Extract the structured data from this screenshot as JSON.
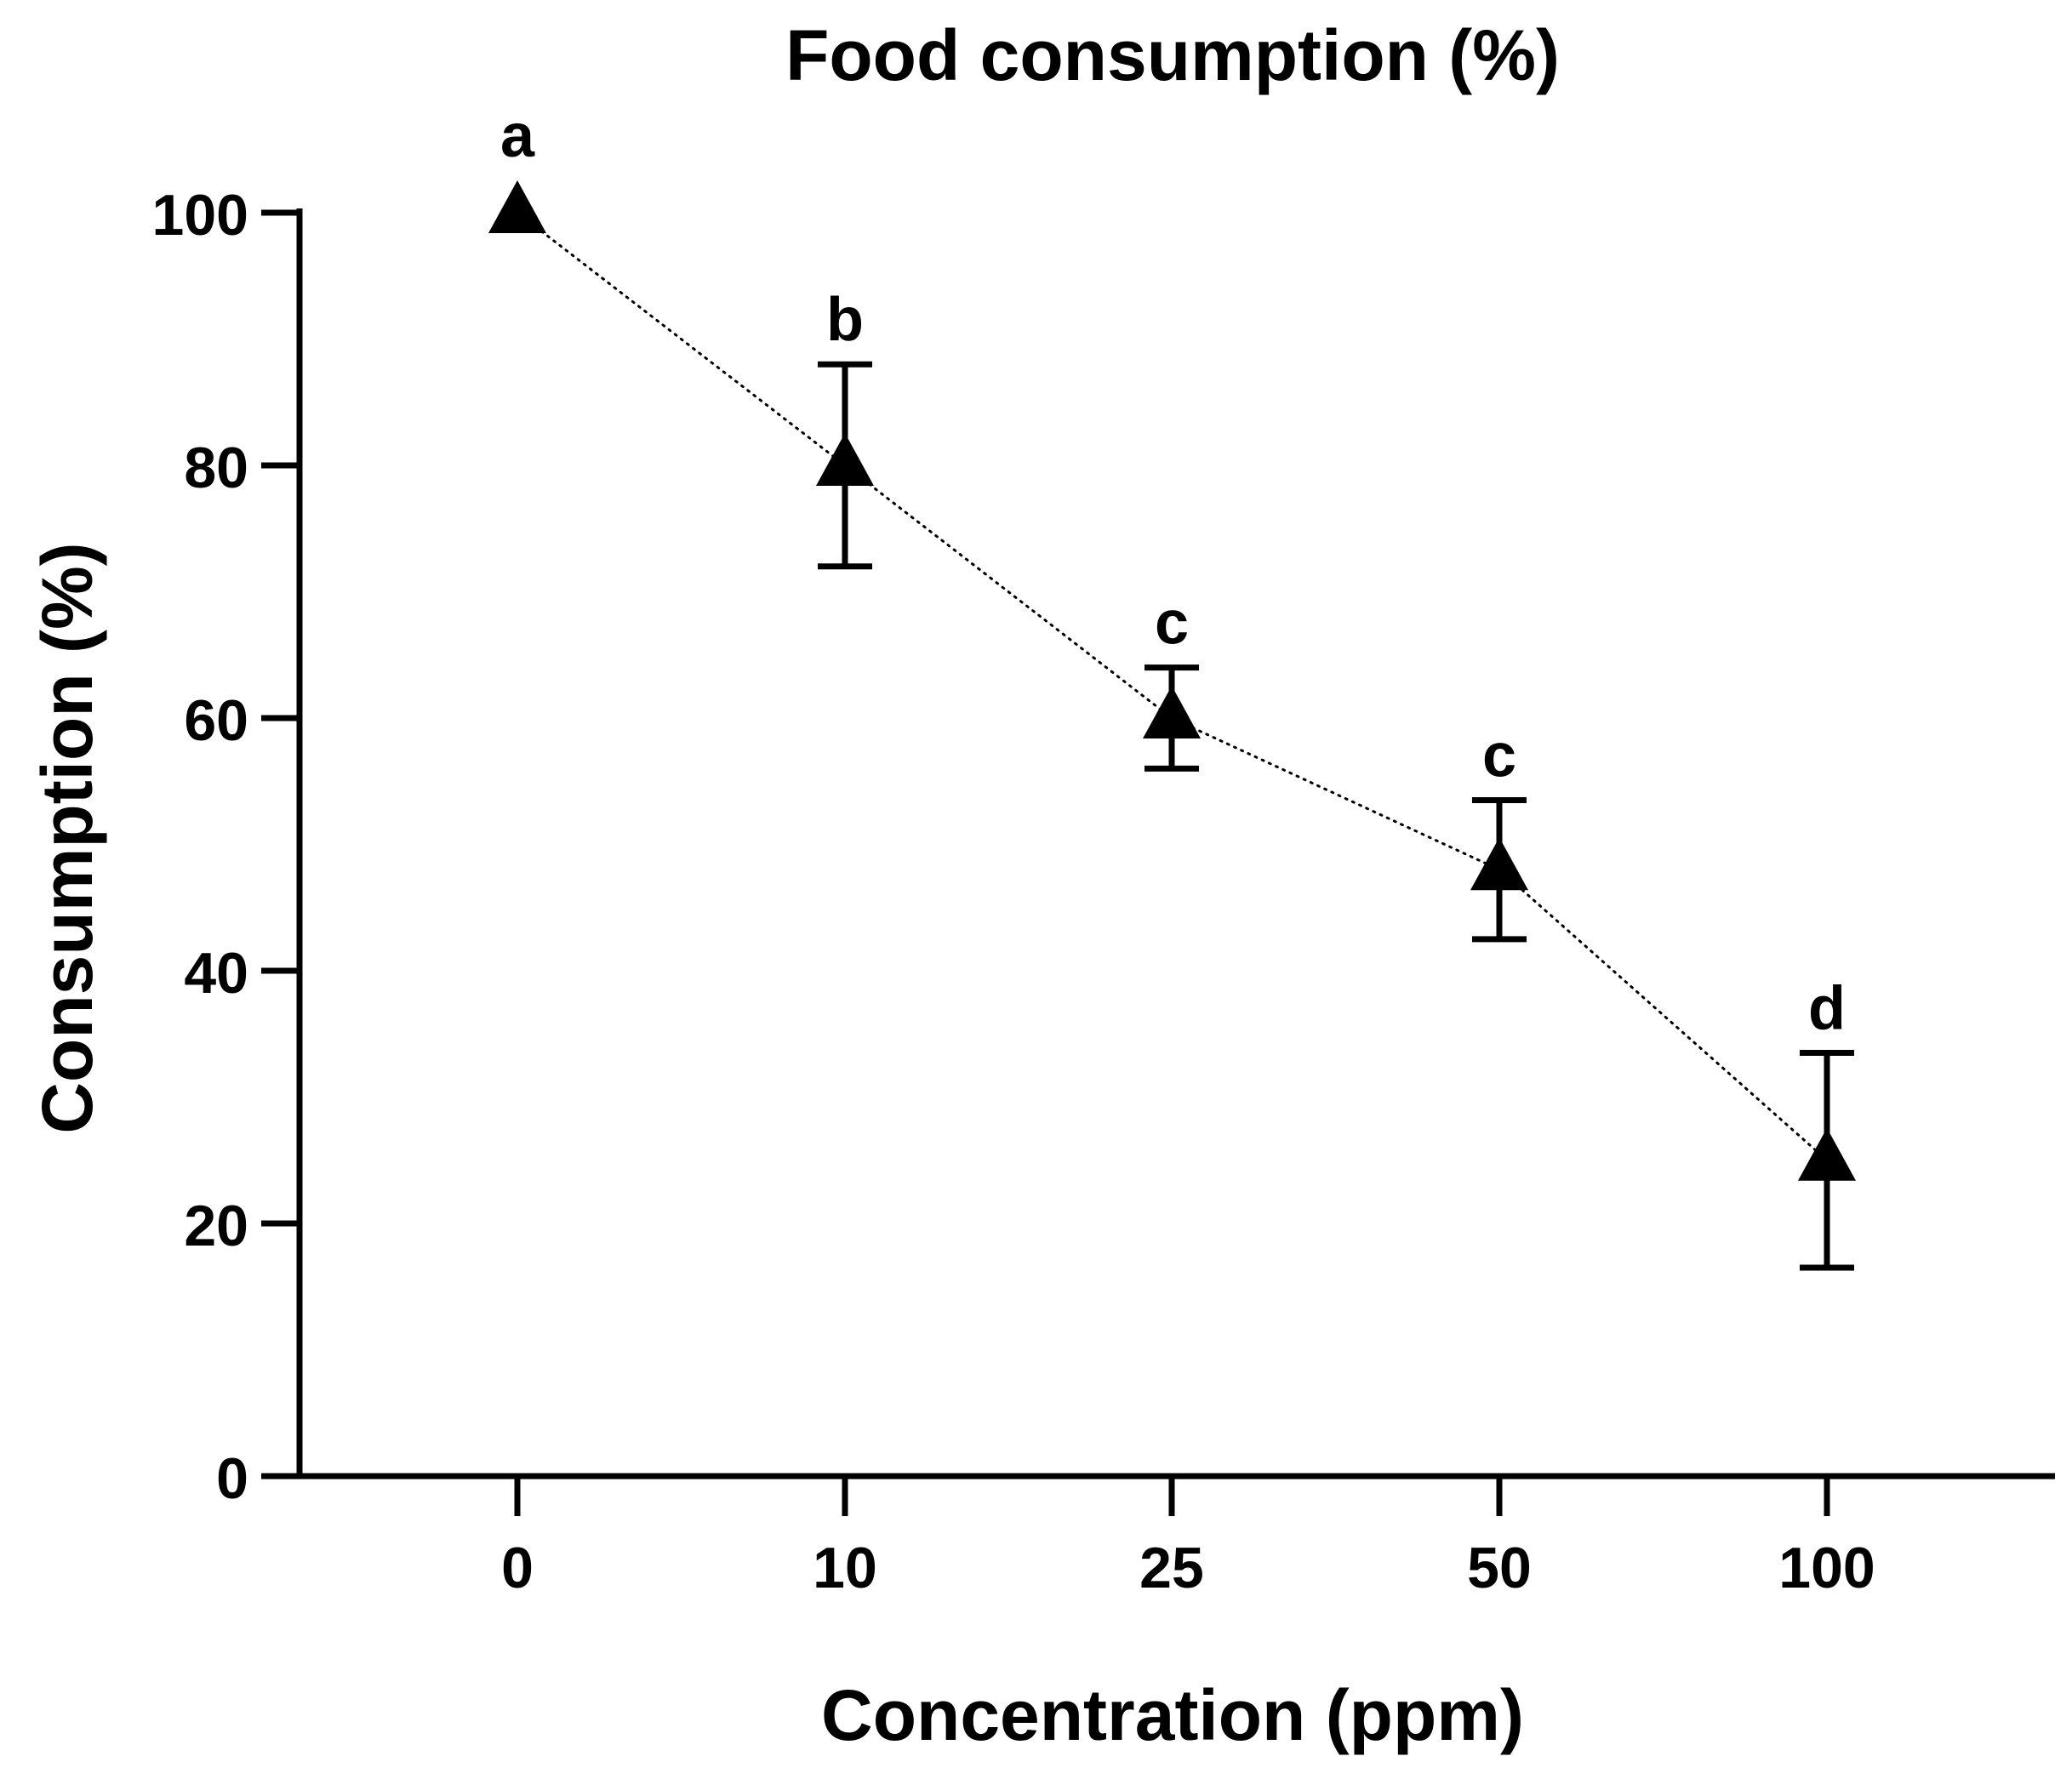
{
  "chart_data": {
    "type": "scatter",
    "title": "Food consumption (%)",
    "xlabel": "Concentration (ppm)",
    "ylabel": "Consumption (%)",
    "categories": [
      "0",
      "10",
      "25",
      "50",
      "100"
    ],
    "values": [
      100,
      80,
      60,
      48,
      25
    ],
    "error_low": [
      100,
      72,
      56,
      42.5,
      16.5
    ],
    "error_high": [
      100,
      88,
      64,
      53.5,
      33.5
    ],
    "significance_labels": [
      "a",
      "b",
      "c",
      "c",
      "d"
    ],
    "connector": "dotted-line",
    "marker": "triangle",
    "ylim": [
      0,
      100
    ],
    "yticks": [
      0,
      20,
      40,
      60,
      80,
      100
    ],
    "grid": false,
    "colors": {
      "marker": "#000000",
      "axis": "#000000",
      "background": "#ffffff"
    }
  }
}
